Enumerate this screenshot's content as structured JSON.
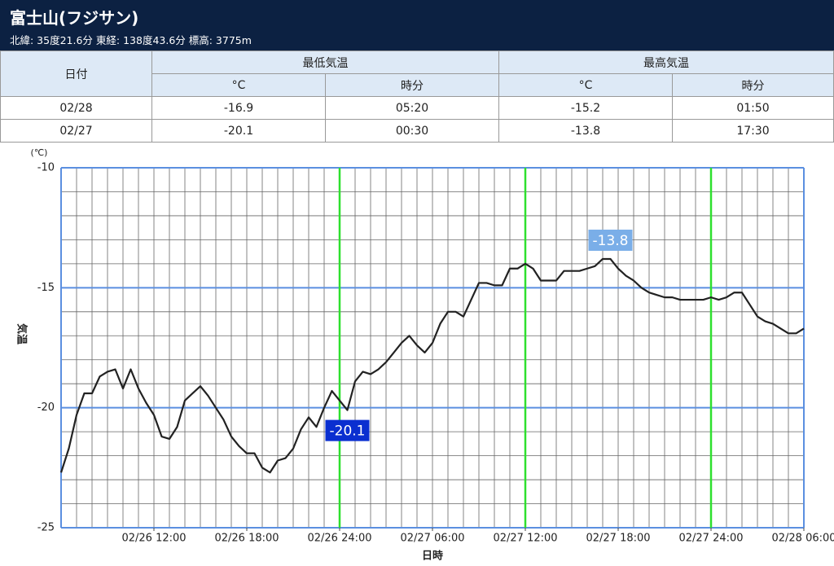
{
  "header": {
    "title": "富士山(フジサン)",
    "subtitle": "北緯: 35度21.6分 東経: 138度43.6分 標高: 3775m"
  },
  "table": {
    "header": [
      "日付",
      "最低気温",
      "最高気温"
    ],
    "subheader": [
      "°C",
      "時分",
      "°C",
      "時分"
    ],
    "rows": [
      [
        "02/28",
        -16.9,
        "05:20",
        -15.2,
        "01:50"
      ],
      [
        "02/27",
        -20.1,
        "00:30",
        -13.8,
        "17:30"
      ]
    ]
  },
  "chart_data": {
    "type": "line",
    "y_unit": "(℃)",
    "ylabel": "気温",
    "xlabel": "日時",
    "xlim": [
      "02/26 06:00",
      "02/28 06:00"
    ],
    "xticks": [
      "02/26 12:00",
      "02/26 18:00",
      "02/26 24:00",
      "02/27 06:00",
      "02/27 12:00",
      "02/27 18:00",
      "02/27 24:00",
      "02/28 06:00"
    ],
    "highlight_x": [
      "02/26 24:00",
      "02/27 12:00",
      "02/27 24:00"
    ],
    "highlight_color": "#2ee02e",
    "ylim": [
      -25,
      -10
    ],
    "yticks": [
      -10,
      -15,
      -20,
      -25
    ],
    "grid": true,
    "x": [
      "02/26 06:00",
      "02/26 06:30",
      "02/26 07:00",
      "02/26 07:30",
      "02/26 08:00",
      "02/26 08:30",
      "02/26 09:00",
      "02/26 09:30",
      "02/26 10:00",
      "02/26 10:30",
      "02/26 11:00",
      "02/26 11:30",
      "02/26 12:00",
      "02/26 12:30",
      "02/26 13:00",
      "02/26 13:30",
      "02/26 14:00",
      "02/26 14:30",
      "02/26 15:00",
      "02/26 15:30",
      "02/26 16:00",
      "02/26 16:30",
      "02/26 17:00",
      "02/26 17:30",
      "02/26 18:00",
      "02/26 18:30",
      "02/26 19:00",
      "02/26 19:30",
      "02/26 20:00",
      "02/26 20:30",
      "02/26 21:00",
      "02/26 21:30",
      "02/26 22:00",
      "02/26 22:30",
      "02/26 23:00",
      "02/26 23:30",
      "02/27 00:00",
      "02/27 00:30",
      "02/27 01:00",
      "02/27 01:30",
      "02/27 02:00",
      "02/27 02:30",
      "02/27 03:00",
      "02/27 03:30",
      "02/27 04:00",
      "02/27 04:30",
      "02/27 05:00",
      "02/27 05:30",
      "02/27 06:00",
      "02/27 06:30",
      "02/27 07:00",
      "02/27 07:30",
      "02/27 08:00",
      "02/27 08:30",
      "02/27 09:00",
      "02/27 09:30",
      "02/27 10:00",
      "02/27 10:30",
      "02/27 11:00",
      "02/27 11:30",
      "02/27 12:00",
      "02/27 12:30",
      "02/27 13:00",
      "02/27 13:30",
      "02/27 14:00",
      "02/27 14:30",
      "02/27 15:00",
      "02/27 15:30",
      "02/27 16:00",
      "02/27 16:30",
      "02/27 17:00",
      "02/27 17:30",
      "02/27 18:00",
      "02/27 18:30",
      "02/27 19:00",
      "02/27 19:30",
      "02/27 20:00",
      "02/27 20:30",
      "02/27 21:00",
      "02/27 21:30",
      "02/27 22:00",
      "02/27 22:30",
      "02/27 23:00",
      "02/27 23:30",
      "02/28 00:00",
      "02/28 00:30",
      "02/28 01:00",
      "02/28 01:30",
      "02/28 02:00",
      "02/28 02:30",
      "02/28 03:00",
      "02/28 03:30",
      "02/28 04:00",
      "02/28 04:30",
      "02/28 05:00",
      "02/28 05:30",
      "02/28 06:00"
    ],
    "series": [
      {
        "name": "気温",
        "color": "#222222",
        "values": [
          -22.7,
          -21.7,
          -20.3,
          -19.4,
          -19.4,
          -18.7,
          -18.5,
          -18.4,
          -19.2,
          -18.4,
          -19.2,
          -19.8,
          -20.3,
          -21.2,
          -21.3,
          -20.8,
          -19.7,
          -19.4,
          -19.1,
          -19.5,
          -20.0,
          -20.5,
          -21.2,
          -21.6,
          -21.9,
          -21.9,
          -22.5,
          -22.7,
          -22.2,
          -22.1,
          -21.7,
          -20.9,
          -20.4,
          -20.8,
          -20.0,
          -19.3,
          -19.7,
          -20.1,
          -18.9,
          -18.5,
          -18.6,
          -18.4,
          -18.1,
          -17.7,
          -17.3,
          -17.0,
          -17.4,
          -17.7,
          -17.3,
          -16.5,
          -16.0,
          -16.0,
          -16.2,
          -15.5,
          -14.8,
          -14.8,
          -14.9,
          -14.9,
          -14.2,
          -14.2,
          -14.0,
          -14.2,
          -14.7,
          -14.7,
          -14.7,
          -14.3,
          -14.3,
          -14.3,
          -14.2,
          -14.1,
          -13.8,
          -13.8,
          -14.2,
          -14.5,
          -14.7,
          -15.0,
          -15.2,
          -15.3,
          -15.4,
          -15.4,
          -15.5,
          -15.5,
          -15.5,
          -15.5,
          -15.4,
          -15.5,
          -15.4,
          -15.2,
          -15.2,
          -15.7,
          -16.2,
          -16.4,
          -16.5,
          -16.7,
          -16.9,
          -16.9,
          -16.7
        ]
      }
    ],
    "annotations": [
      {
        "x": "02/27 00:30",
        "value": -20.1,
        "label": "-20.1",
        "color": "#0a2fd0",
        "position": "below"
      },
      {
        "x": "02/27 17:30",
        "value": -13.8,
        "label": "-13.8",
        "color": "#7aaee8",
        "position": "above"
      }
    ]
  }
}
